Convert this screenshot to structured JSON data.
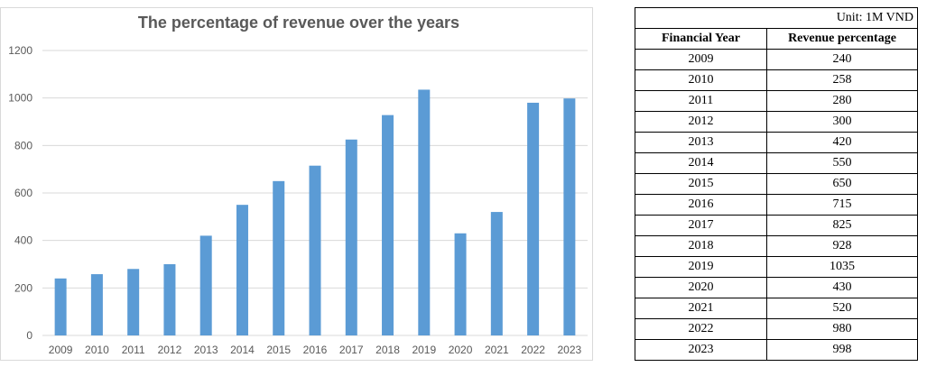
{
  "chart_data": {
    "type": "bar",
    "title": "The percentage of revenue over the years",
    "categories": [
      "2009",
      "2010",
      "2011",
      "2012",
      "2013",
      "2014",
      "2015",
      "2016",
      "2017",
      "2018",
      "2019",
      "2020",
      "2021",
      "2022",
      "2023"
    ],
    "values": [
      240,
      258,
      280,
      300,
      420,
      550,
      650,
      715,
      825,
      928,
      1035,
      430,
      520,
      980,
      998
    ],
    "yticks": [
      "0",
      "200",
      "400",
      "600",
      "800",
      "1000",
      "1200"
    ],
    "ylim": [
      0,
      1200
    ],
    "grid": true,
    "bar_color": "#5b9bd5"
  },
  "table": {
    "unit": "Unit: 1M VND",
    "headers": [
      "Financial Year",
      "Revenue percentage"
    ],
    "rows": [
      [
        "2009",
        "240"
      ],
      [
        "2010",
        "258"
      ],
      [
        "2011",
        "280"
      ],
      [
        "2012",
        "300"
      ],
      [
        "2013",
        "420"
      ],
      [
        "2014",
        "550"
      ],
      [
        "2015",
        "650"
      ],
      [
        "2016",
        "715"
      ],
      [
        "2017",
        "825"
      ],
      [
        "2018",
        "928"
      ],
      [
        "2019",
        "1035"
      ],
      [
        "2020",
        "430"
      ],
      [
        "2021",
        "520"
      ],
      [
        "2022",
        "980"
      ],
      [
        "2023",
        "998"
      ]
    ]
  }
}
